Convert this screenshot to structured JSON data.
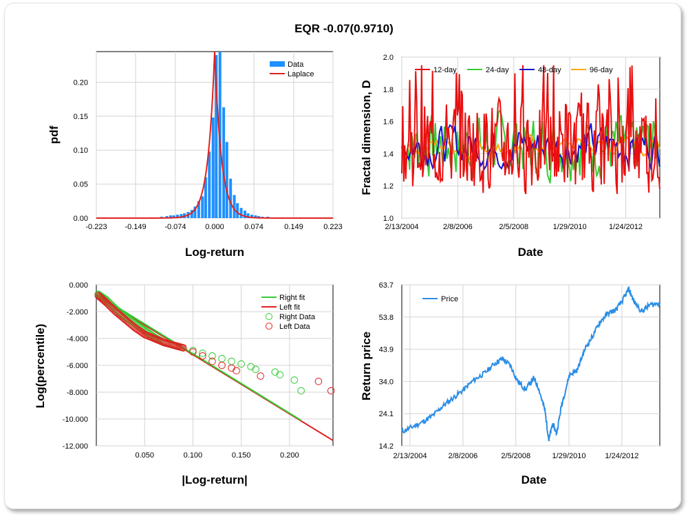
{
  "title": "EQR -0.07(0.9710)",
  "chart_data": [
    {
      "type": "bar",
      "xlabel": "Log-return",
      "ylabel": "pdf",
      "xticks": [
        "-0.223",
        "-0.149",
        "-0.074",
        "0.000",
        "0.074",
        "0.149",
        "0.223"
      ],
      "yticks": [
        "0.00",
        "0.05",
        "0.10",
        "0.15",
        "0.20"
      ],
      "xlim": [
        -0.223,
        0.223
      ],
      "ylim": [
        0,
        0.245
      ],
      "legend": [
        "Data",
        "Laplace"
      ],
      "colors": {
        "data": "#1e90ff",
        "laplace": "#e02020"
      },
      "bins": [
        -0.2,
        -0.1,
        -0.09,
        -0.083,
        -0.077,
        -0.07,
        -0.063,
        -0.057,
        -0.05,
        -0.043,
        -0.037,
        -0.03,
        -0.023,
        -0.017,
        -0.01,
        -0.003,
        0.003,
        0.01,
        0.017,
        0.023,
        0.03,
        0.037,
        0.043,
        0.05,
        0.057,
        0.063,
        0.07,
        0.077,
        0.083,
        0.09,
        0.1,
        0.12,
        0.19
      ],
      "values": [
        0.001,
        0.002,
        0.003,
        0.004,
        0.004,
        0.005,
        0.006,
        0.007,
        0.009,
        0.012,
        0.017,
        0.025,
        0.032,
        0.06,
        0.098,
        0.148,
        0.24,
        0.245,
        0.163,
        0.112,
        0.058,
        0.034,
        0.022,
        0.015,
        0.011,
        0.007,
        0.005,
        0.004,
        0.003,
        0.002,
        0.002,
        0.001,
        0.001
      ],
      "laplace": {
        "mu": 0.0,
        "b": 0.0021,
        "peak": 0.245
      }
    },
    {
      "type": "line",
      "xlabel": "Date",
      "ylabel": "Fractal dimension, D",
      "xticks": [
        "2/13/2004",
        "2/8/2006",
        "2/5/2008",
        "1/29/2010",
        "1/24/2012"
      ],
      "yticks": [
        "1.0",
        "1.2",
        "1.4",
        "1.6",
        "1.8",
        "2.0"
      ],
      "ylim": [
        1.0,
        2.0
      ],
      "series": [
        {
          "name": "12-day",
          "color": "#e81010"
        },
        {
          "name": "24-day",
          "color": "#33cc33"
        },
        {
          "name": "48-day",
          "color": "#1010d0"
        },
        {
          "name": "96-day",
          "color": "#ffa500"
        }
      ]
    },
    {
      "type": "scatter",
      "xlabel": "|Log-return|",
      "ylabel": "Log(percentile)",
      "xticks": [
        "0.050",
        "0.100",
        "0.150",
        "0.200"
      ],
      "yticks": [
        "0.000",
        "-2.000",
        "-4.000",
        "-6.000",
        "-8.000",
        "-10.000",
        "-12.000"
      ],
      "xlim": [
        0,
        0.245
      ],
      "ylim": [
        -12,
        0
      ],
      "legend": [
        "Right fit",
        "Left fit",
        "Right Data",
        "Left Data"
      ],
      "colors": {
        "right": "#33cc33",
        "left": "#e02020"
      },
      "right_fit": [
        [
          0.0,
          -0.7
        ],
        [
          0.212,
          -10.1
        ]
      ],
      "left_fit": [
        [
          0.0,
          -0.8
        ],
        [
          0.245,
          -11.6
        ]
      ],
      "right_data": [
        [
          0.002,
          -0.7
        ],
        [
          0.01,
          -1.1
        ],
        [
          0.02,
          -1.8
        ],
        [
          0.03,
          -2.4
        ],
        [
          0.04,
          -2.9
        ],
        [
          0.05,
          -3.4
        ],
        [
          0.06,
          -3.9
        ],
        [
          0.07,
          -4.3
        ],
        [
          0.08,
          -4.5
        ],
        [
          0.09,
          -4.7
        ],
        [
          0.1,
          -4.9
        ],
        [
          0.11,
          -5.1
        ],
        [
          0.12,
          -5.3
        ],
        [
          0.13,
          -5.5
        ],
        [
          0.14,
          -5.7
        ],
        [
          0.15,
          -5.9
        ],
        [
          0.16,
          -6.1
        ],
        [
          0.165,
          -6.3
        ],
        [
          0.185,
          -6.5
        ],
        [
          0.19,
          -6.7
        ],
        [
          0.205,
          -7.1
        ],
        [
          0.212,
          -7.9
        ]
      ],
      "left_data": [
        [
          0.002,
          -0.8
        ],
        [
          0.01,
          -1.3
        ],
        [
          0.02,
          -2.0
        ],
        [
          0.03,
          -2.6
        ],
        [
          0.04,
          -3.2
        ],
        [
          0.05,
          -3.7
        ],
        [
          0.06,
          -4.0
        ],
        [
          0.07,
          -4.3
        ],
        [
          0.08,
          -4.5
        ],
        [
          0.09,
          -4.7
        ],
        [
          0.1,
          -5.0
        ],
        [
          0.11,
          -5.3
        ],
        [
          0.12,
          -5.7
        ],
        [
          0.13,
          -6.0
        ],
        [
          0.14,
          -6.2
        ],
        [
          0.145,
          -6.4
        ],
        [
          0.17,
          -6.8
        ],
        [
          0.23,
          -7.2
        ],
        [
          0.243,
          -7.9
        ]
      ]
    },
    {
      "type": "line",
      "xlabel": "Date",
      "ylabel": "Return price",
      "xticks": [
        "2/13/2004",
        "2/8/2006",
        "2/5/2008",
        "1/29/2010",
        "1/24/2012"
      ],
      "yticks": [
        "14.2",
        "24.1",
        "34.0",
        "43.9",
        "53.8",
        "63.7"
      ],
      "ylim": [
        14.2,
        63.7
      ],
      "series": [
        {
          "name": "Price",
          "color": "#2a8ee6",
          "points": [
            [
              0.0,
              18.5
            ],
            [
              0.04,
              20.0
            ],
            [
              0.08,
              21.5
            ],
            [
              0.12,
              23.5
            ],
            [
              0.16,
              26.5
            ],
            [
              0.2,
              29.0
            ],
            [
              0.24,
              31.5
            ],
            [
              0.28,
              34.5
            ],
            [
              0.32,
              36.5
            ],
            [
              0.36,
              39.5
            ],
            [
              0.39,
              41.0
            ],
            [
              0.42,
              39.0
            ],
            [
              0.45,
              34.0
            ],
            [
              0.48,
              31.5
            ],
            [
              0.51,
              35.0
            ],
            [
              0.53,
              32.0
            ],
            [
              0.555,
              25.0
            ],
            [
              0.57,
              16.0
            ],
            [
              0.585,
              21.0
            ],
            [
              0.6,
              18.0
            ],
            [
              0.62,
              27.0
            ],
            [
              0.65,
              36.0
            ],
            [
              0.68,
              37.5
            ],
            [
              0.71,
              44.0
            ],
            [
              0.74,
              48.0
            ],
            [
              0.77,
              52.5
            ],
            [
              0.8,
              55.0
            ],
            [
              0.83,
              56.0
            ],
            [
              0.86,
              59.5
            ],
            [
              0.88,
              62.5
            ],
            [
              0.9,
              58.5
            ],
            [
              0.93,
              55.5
            ],
            [
              0.96,
              57.5
            ],
            [
              1.0,
              58.0
            ]
          ]
        }
      ]
    }
  ]
}
